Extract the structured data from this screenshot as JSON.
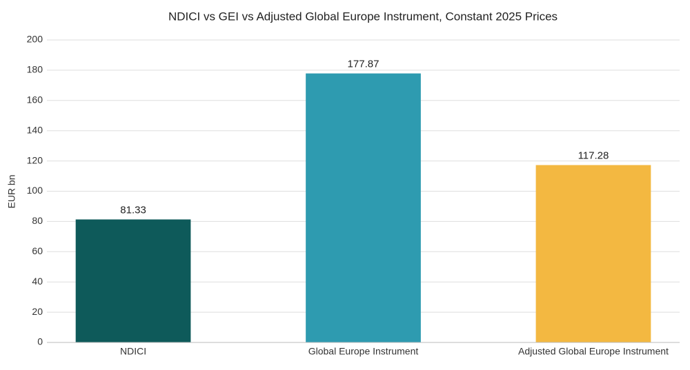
{
  "chart_data": {
    "type": "bar",
    "title": "NDICI vs GEI vs Adjusted Global Europe Instrument, Constant 2025 Prices",
    "y_label": "EUR bn",
    "categories": [
      "NDICI",
      "Global Europe Instrument",
      "Adjusted Global Europe Instrument"
    ],
    "values": [
      81.33,
      177.87,
      117.28
    ],
    "colors": [
      "#0e5a5a",
      "#2e9bb0",
      "#f3b841"
    ],
    "ylim": [
      0,
      200
    ],
    "yticks": [
      0,
      20,
      40,
      60,
      80,
      100,
      120,
      140,
      160,
      180,
      200
    ],
    "grid": true
  }
}
